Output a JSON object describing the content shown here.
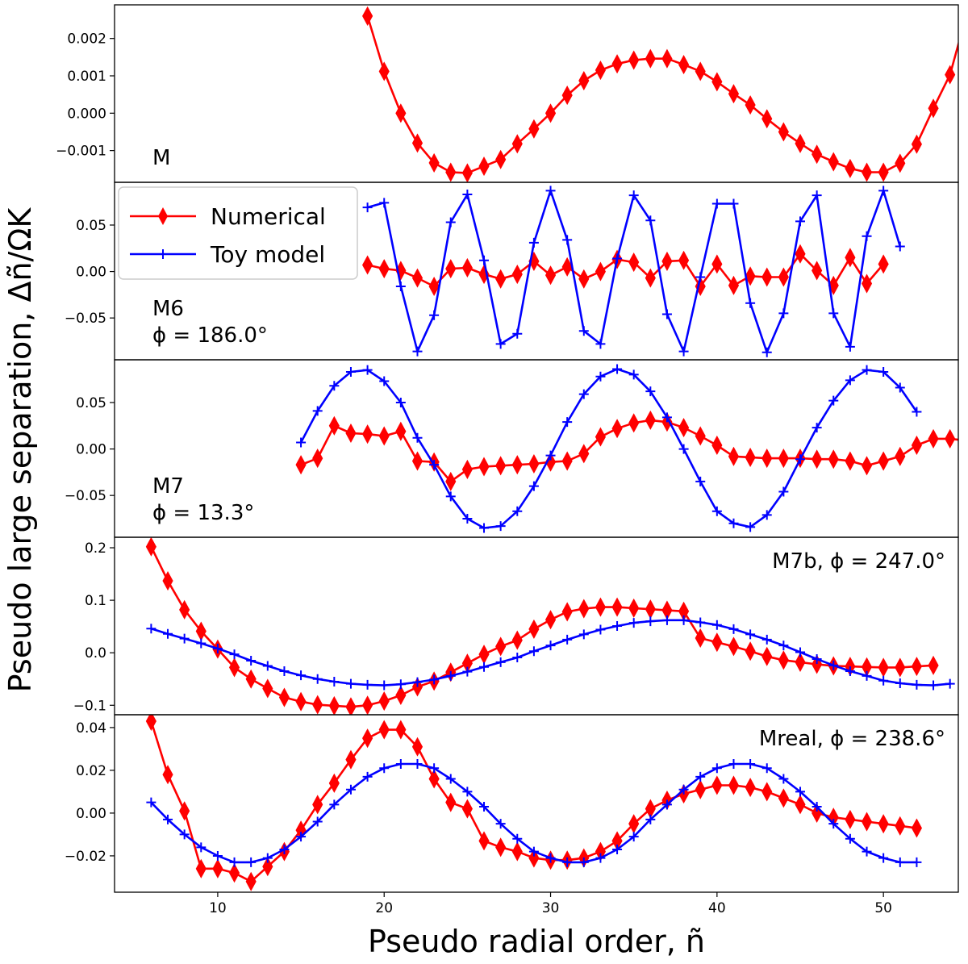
{
  "chart_data": {
    "type": "line",
    "xlabel": "Pseudo radial order, ñ",
    "ylabel": "Pseudo large separation, Δñ/ΩK",
    "xlim": [
      3.8,
      54.5
    ],
    "xticks": [
      10,
      20,
      30,
      40,
      50
    ],
    "legend": {
      "location": "upper-left of panel 2",
      "entries": [
        {
          "name": "Numerical",
          "color": "#ff0000",
          "marker": "diamond"
        },
        {
          "name": "Toy model",
          "color": "#0000ff",
          "marker": "plus"
        }
      ]
    },
    "panels": [
      {
        "label_lines": [
          "M"
        ],
        "label_position": "left",
        "ylim": [
          -0.00185,
          0.0029
        ],
        "yticks": [
          -0.001,
          0.0,
          0.001,
          0.002
        ],
        "ytick_labels": [
          "−0.001",
          "0.000",
          "0.001",
          "0.002"
        ],
        "series": [
          {
            "name": "Numerical",
            "x_start": 19,
            "values": [
              0.0026,
              0.00112,
              0.0,
              -0.0008,
              -0.00133,
              -0.00158,
              -0.0016,
              -0.00142,
              -0.00124,
              -0.00082,
              -0.00042,
              0.0,
              0.00048,
              0.00087,
              0.00115,
              0.00132,
              0.00142,
              0.00146,
              0.00146,
              0.0013,
              0.00112,
              0.00084,
              0.00052,
              0.00022,
              -0.00015,
              -0.0005,
              -0.00081,
              -0.0011,
              -0.0013,
              -0.00148,
              -0.00158,
              -0.00158,
              -0.00134,
              -0.00083,
              0.00013,
              0.00103,
              0.00265
            ]
          }
        ]
      },
      {
        "label_lines": [
          "M6",
          "ϕ = 186.0°"
        ],
        "label_position": "left",
        "ylim": [
          -0.095,
          0.096
        ],
        "yticks": [
          -0.05,
          0.0,
          0.05
        ],
        "ytick_labels": [
          "−0.05",
          "0.00",
          "0.05"
        ],
        "series": [
          {
            "name": "Numerical",
            "x_start": 19,
            "values": [
              0.007,
              0.003,
              0.001,
              -0.007,
              -0.016,
              0.003,
              0.004,
              -0.003,
              -0.008,
              -0.003,
              0.011,
              -0.004,
              0.005,
              -0.008,
              0.0,
              0.013,
              0.01,
              -0.007,
              0.011,
              0.012,
              -0.016,
              0.008,
              -0.015,
              -0.005,
              -0.006,
              -0.006,
              0.019,
              0.001,
              -0.015,
              0.015,
              -0.013,
              0.008
            ]
          },
          {
            "name": "Toy model",
            "x_start": 19,
            "values": [
              0.069,
              0.074,
              -0.016,
              -0.086,
              -0.047,
              0.053,
              0.083,
              0.012,
              -0.078,
              -0.067,
              0.031,
              0.087,
              0.034,
              -0.064,
              -0.078,
              0.014,
              0.082,
              0.055,
              -0.046,
              -0.086,
              -0.006,
              0.073,
              0.073,
              -0.034,
              -0.087,
              -0.045,
              0.054,
              0.082,
              -0.045,
              -0.081,
              0.038,
              0.087,
              0.027
            ]
          }
        ]
      },
      {
        "label_lines": [
          "M7",
          "ϕ = 13.3°"
        ],
        "label_position": "left",
        "ylim": [
          -0.095,
          0.096
        ],
        "yticks": [
          -0.05,
          0.0,
          0.05
        ],
        "ytick_labels": [
          "−0.05",
          "0.00",
          "0.05"
        ],
        "series": [
          {
            "name": "Numerical",
            "x_start": 15,
            "values": [
              -0.017,
              -0.01,
              0.025,
              0.017,
              0.016,
              0.014,
              0.019,
              -0.013,
              -0.014,
              -0.035,
              -0.022,
              -0.019,
              -0.018,
              -0.017,
              -0.016,
              -0.014,
              -0.013,
              -0.005,
              0.013,
              0.022,
              0.028,
              0.031,
              0.029,
              0.023,
              0.014,
              0.004,
              -0.008,
              -0.009,
              -0.01,
              -0.01,
              -0.01,
              -0.011,
              -0.011,
              -0.013,
              -0.018,
              -0.013,
              -0.008,
              0.004,
              0.011,
              0.011,
              0.009,
              0.005,
              -0.002
            ]
          },
          {
            "name": "Toy model",
            "x_start": 15,
            "values": [
              0.007,
              0.041,
              0.068,
              0.083,
              0.085,
              0.073,
              0.05,
              0.012,
              -0.017,
              -0.051,
              -0.075,
              -0.085,
              -0.083,
              -0.067,
              -0.04,
              -0.007,
              0.029,
              0.059,
              0.078,
              0.086,
              0.08,
              0.062,
              0.034,
              0.0,
              -0.035,
              -0.067,
              -0.08,
              -0.084,
              -0.071,
              -0.046,
              -0.011,
              0.023,
              0.052,
              0.074,
              0.085,
              0.083,
              0.066,
              0.04
            ]
          }
        ]
      },
      {
        "label_lines": [
          "M7b, ϕ = 247.0°"
        ],
        "label_position": "right",
        "ylim": [
          -0.118,
          0.22
        ],
        "yticks": [
          -0.1,
          0.0,
          0.1,
          0.2
        ],
        "ytick_labels": [
          "−0.1",
          "0.0",
          "0.1",
          "0.2"
        ],
        "series": [
          {
            "name": "Numerical",
            "x_start": 6,
            "values": [
              0.202,
              0.137,
              0.082,
              0.041,
              0.007,
              -0.028,
              -0.05,
              -0.068,
              -0.085,
              -0.093,
              -0.099,
              -0.101,
              -0.103,
              -0.1,
              -0.092,
              -0.081,
              -0.065,
              -0.054,
              -0.037,
              -0.02,
              -0.003,
              0.012,
              0.024,
              0.045,
              0.063,
              0.078,
              0.084,
              0.087,
              0.087,
              0.085,
              0.083,
              0.081,
              0.079,
              0.028,
              0.02,
              0.012,
              0.003,
              -0.007,
              -0.014,
              -0.018,
              -0.022,
              -0.025,
              -0.026,
              -0.027,
              -0.028,
              -0.028,
              -0.026,
              -0.024
            ]
          },
          {
            "name": "Toy model",
            "x_start": 6,
            "values": [
              0.046,
              0.036,
              0.027,
              0.018,
              0.008,
              -0.003,
              -0.015,
              -0.025,
              -0.035,
              -0.043,
              -0.05,
              -0.055,
              -0.059,
              -0.061,
              -0.062,
              -0.06,
              -0.056,
              -0.051,
              -0.044,
              -0.036,
              -0.027,
              -0.018,
              -0.009,
              0.003,
              0.014,
              0.025,
              0.035,
              0.044,
              0.051,
              0.057,
              0.06,
              0.062,
              0.062,
              0.058,
              0.053,
              0.045,
              0.035,
              0.025,
              0.014,
              0.001,
              -0.012,
              -0.024,
              -0.035,
              -0.044,
              -0.053,
              -0.058,
              -0.061,
              -0.062,
              -0.059
            ]
          }
        ]
      },
      {
        "label_lines": [
          "Mreal, ϕ = 238.6°"
        ],
        "label_position": "right",
        "ylim": [
          -0.037,
          0.046
        ],
        "yticks": [
          -0.02,
          0.0,
          0.02,
          0.04
        ],
        "ytick_labels": [
          "−0.02",
          "0.00",
          "0.02",
          "0.04"
        ],
        "series": [
          {
            "name": "Numerical",
            "x_start": 6,
            "values": [
              0.043,
              0.018,
              0.001,
              -0.026,
              -0.026,
              -0.028,
              -0.032,
              -0.025,
              -0.018,
              -0.008,
              0.004,
              0.014,
              0.025,
              0.035,
              0.039,
              0.039,
              0.031,
              0.016,
              0.005,
              0.002,
              -0.013,
              -0.016,
              -0.018,
              -0.021,
              -0.022,
              -0.022,
              -0.021,
              -0.018,
              -0.013,
              -0.005,
              0.002,
              0.006,
              0.009,
              0.011,
              0.013,
              0.013,
              0.012,
              0.01,
              0.007,
              0.004,
              0.0,
              -0.002,
              -0.003,
              -0.004,
              -0.005,
              -0.006,
              -0.007
            ]
          },
          {
            "name": "Toy model",
            "x_start": 6,
            "values": [
              0.005,
              -0.003,
              -0.01,
              -0.016,
              -0.02,
              -0.023,
              -0.023,
              -0.021,
              -0.017,
              -0.011,
              -0.004,
              0.004,
              0.011,
              0.017,
              0.021,
              0.023,
              0.023,
              0.021,
              0.016,
              0.01,
              0.003,
              -0.005,
              -0.012,
              -0.018,
              -0.021,
              -0.023,
              -0.023,
              -0.021,
              -0.017,
              -0.011,
              -0.003,
              0.004,
              0.011,
              0.017,
              0.021,
              0.023,
              0.023,
              0.021,
              0.016,
              0.01,
              0.003,
              -0.005,
              -0.012,
              -0.018,
              -0.021,
              -0.023,
              -0.023
            ]
          }
        ]
      }
    ]
  }
}
